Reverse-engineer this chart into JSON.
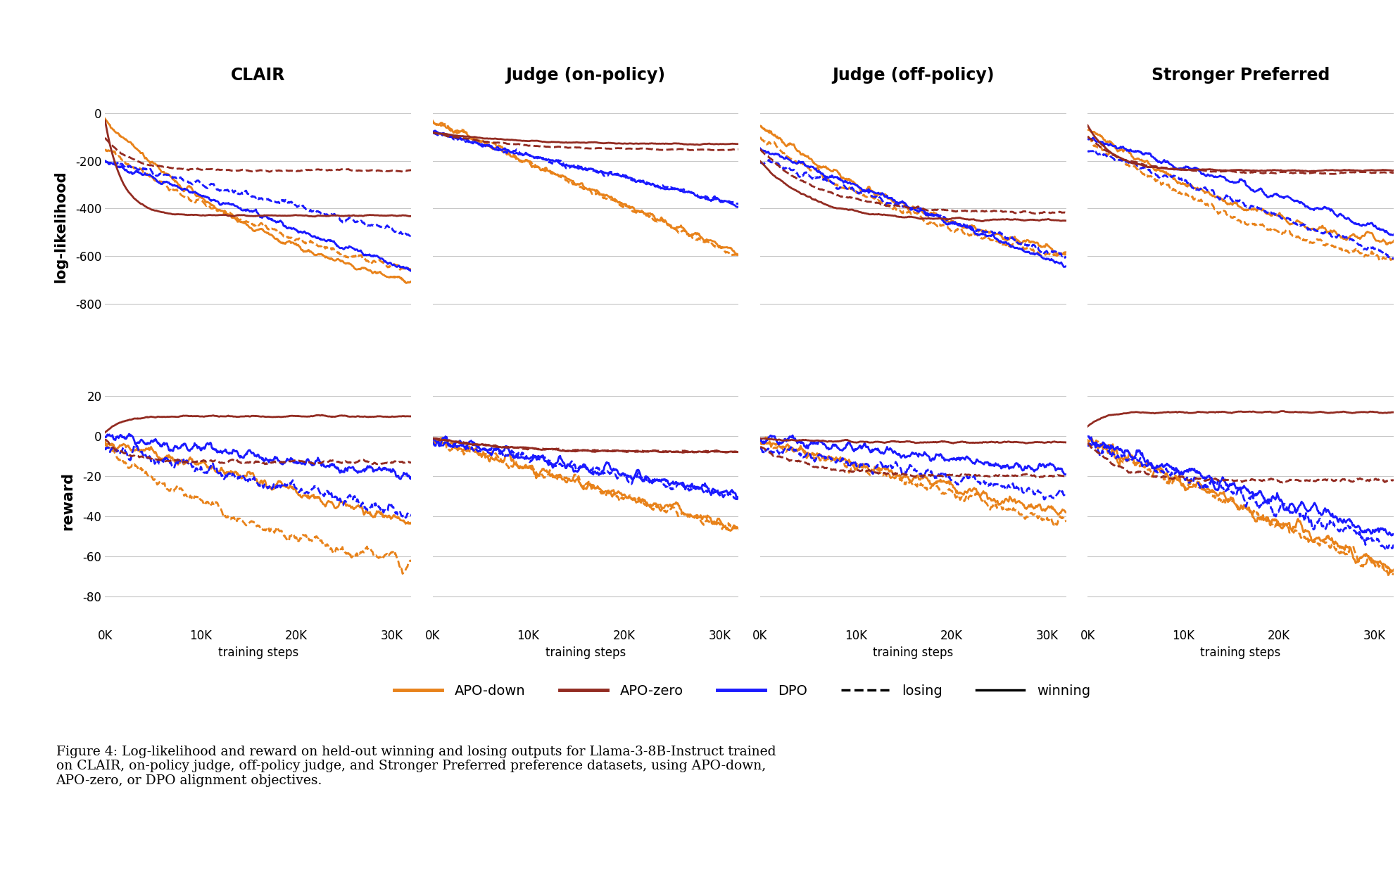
{
  "col_titles": [
    "CLAIR",
    "Judge (on-policy)",
    "Judge (off-policy)",
    "Stronger Preferred"
  ],
  "row_labels": [
    "log-likelihood",
    "reward"
  ],
  "xlabel": "training steps",
  "xticks": [
    0,
    10000,
    20000,
    30000
  ],
  "xtick_labels": [
    "0K",
    "10K",
    "20K",
    "30K"
  ],
  "ll_ylim": [
    -1000,
    50
  ],
  "ll_yticks": [
    0,
    -200,
    -400,
    -600,
    -800
  ],
  "reward_ylim": [
    -95,
    30
  ],
  "reward_yticks": [
    20,
    0,
    -20,
    -40,
    -60,
    -80
  ],
  "colors": {
    "apo_down": "#E8821A",
    "apo_zero": "#922B21",
    "dpo": "#1A1AFF"
  },
  "bg_color": "#FFFFFF",
  "grid_color": "#C8C8C8",
  "lw": 1.8
}
